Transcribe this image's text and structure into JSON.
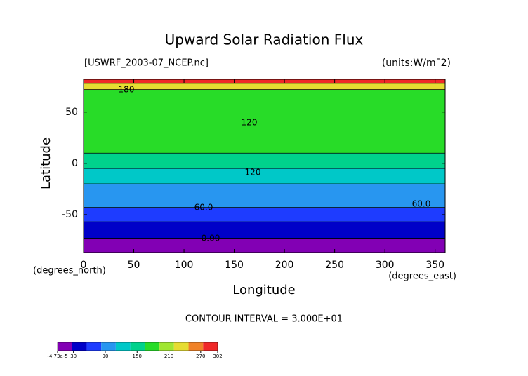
{
  "chart_data": {
    "type": "contour",
    "title": "Upward Solar Radiation Flux",
    "subtitle": "[USWRF_2003-07_NCEP.nc]",
    "units": "(units:W/m¯2)",
    "x_label": "Longitude",
    "x_unit": "(degrees_east)",
    "y_label": "Latitude",
    "y_unit": "(degrees_north)",
    "footer": "CONTOUR INTERVAL = 3.000E+01",
    "xlim": [
      0,
      360
    ],
    "xticks": [
      0,
      50,
      100,
      150,
      200,
      250,
      300,
      350
    ],
    "ylim": [
      -87,
      82
    ],
    "yticks": [
      -50,
      0,
      50
    ],
    "lat_edges": [
      -87,
      -73,
      -57,
      -43,
      -20,
      -5,
      10,
      72,
      78,
      82
    ],
    "values": [
      10,
      45,
      75,
      105,
      130,
      155,
      175,
      245,
      280
    ],
    "contour_labels": [
      "180",
      "120",
      "120",
      "60.0",
      "60.0",
      "0.00"
    ],
    "colorscale": [
      "#8200b4",
      "#0000c8",
      "#1e3cff",
      "#2896f0",
      "#00c8c8",
      "#00d28c",
      "#28dc28",
      "#a0e632",
      "#e6dc32",
      "#f08228",
      "#f02828"
    ],
    "clim": [
      -4.73e-05,
      302
    ],
    "cticks": [
      {
        "value": -4.73e-05,
        "label": "-4.73e-5"
      },
      30,
      90,
      150,
      210,
      270,
      302
    ]
  }
}
